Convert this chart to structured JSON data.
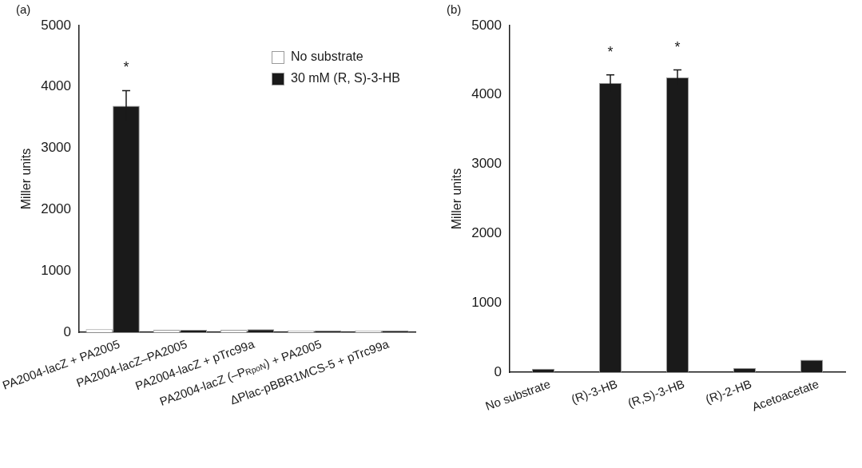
{
  "chart_data": [
    {
      "type": "bar",
      "title": "(a)",
      "ylabel": "Miller units",
      "categories": [
        "PA2004-lacZ + PA2005",
        "PA2004-lacZ–PA2005",
        "PA2004-lacZ + pTrc99a",
        "PA2004-lacZ (–P$_{RpoN}$) + PA2005",
        "ΔPlac-pBBR1MCS-5 + pTrc99a"
      ],
      "series": [
        {
          "name": "No substrate",
          "color": "#ffffff",
          "values": [
            50,
            40,
            40,
            30,
            30
          ]
        },
        {
          "name": "30 mM (R, S)-3-HB",
          "color": "#1a1a1a",
          "values": [
            3690,
            40,
            50,
            30,
            30
          ],
          "errors": [
            250,
            null,
            null,
            null,
            null
          ]
        }
      ],
      "ylim": [
        0,
        5000
      ],
      "yticks": [
        0,
        1000,
        2000,
        3000,
        4000,
        5000
      ],
      "legend": "top right",
      "annotations": [
        {
          "text": "*",
          "x": "PA2004-lacZ + PA2005",
          "y": 3690
        }
      ]
    },
    {
      "type": "bar",
      "title": "(b)",
      "ylabel": "Miller units",
      "categories": [
        "No substrate",
        "(R)-3-HB",
        "(R,S)-3-HB",
        "(R)-2-HB",
        "Acetoacetate"
      ],
      "series": [
        {
          "color": "#1a1a1a",
          "values": [
            50,
            4170,
            4250,
            60,
            180
          ],
          "errors": [
            null,
            120,
            110,
            null,
            null
          ]
        }
      ],
      "ylim": [
        0,
        5000
      ],
      "yticks": [
        0,
        1000,
        2000,
        3000,
        4000,
        5000
      ],
      "annotations": [
        {
          "text": "*",
          "x": "(R)-3-HB",
          "y": 4170
        },
        {
          "text": "*",
          "x": "(R,S)-3-HB",
          "y": 4250
        }
      ]
    }
  ]
}
